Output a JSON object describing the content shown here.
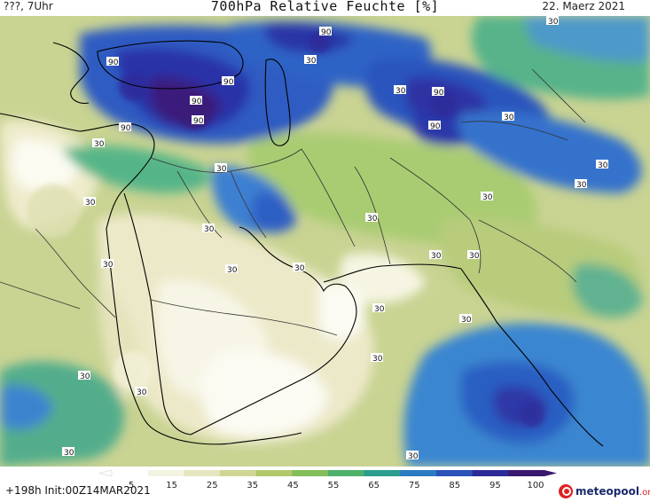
{
  "header": {
    "left": "???, 7Uhr",
    "title": "700hPa Relative Feuchte [%]",
    "right": "22. Maerz 2021"
  },
  "footer": {
    "run_info": "+198h  Init:00Z14MAR2021",
    "brand_main": "meteopool",
    "brand_tld": ".org"
  },
  "legend": {
    "ticks": [
      "5",
      "15",
      "25",
      "35",
      "45",
      "55",
      "65",
      "75",
      "85",
      "95",
      "100"
    ],
    "colors": [
      "#ffffff",
      "#f4f4e2",
      "#e6e6c0",
      "#cfd694",
      "#b1c86a",
      "#84be5b",
      "#4fb06c",
      "#2b9d8e",
      "#2a7bc2",
      "#2b52b9",
      "#2d2b98",
      "#3a1870"
    ]
  },
  "contour_labels": [
    {
      "text": "90",
      "value": 90
    },
    {
      "text": "30",
      "value": 30
    }
  ],
  "palette": {
    "very_dry": "#fbfbf2",
    "dry": "#e9e8c7",
    "moderate": "#c9d392",
    "green": "#9cc670",
    "teal": "#4fb598",
    "light_blue": "#4a90d6",
    "blue": "#2e5fc3",
    "deep_blue": "#2f33a6",
    "purple": "#3a1c7a",
    "coast": "#000000",
    "border": "#333333"
  }
}
